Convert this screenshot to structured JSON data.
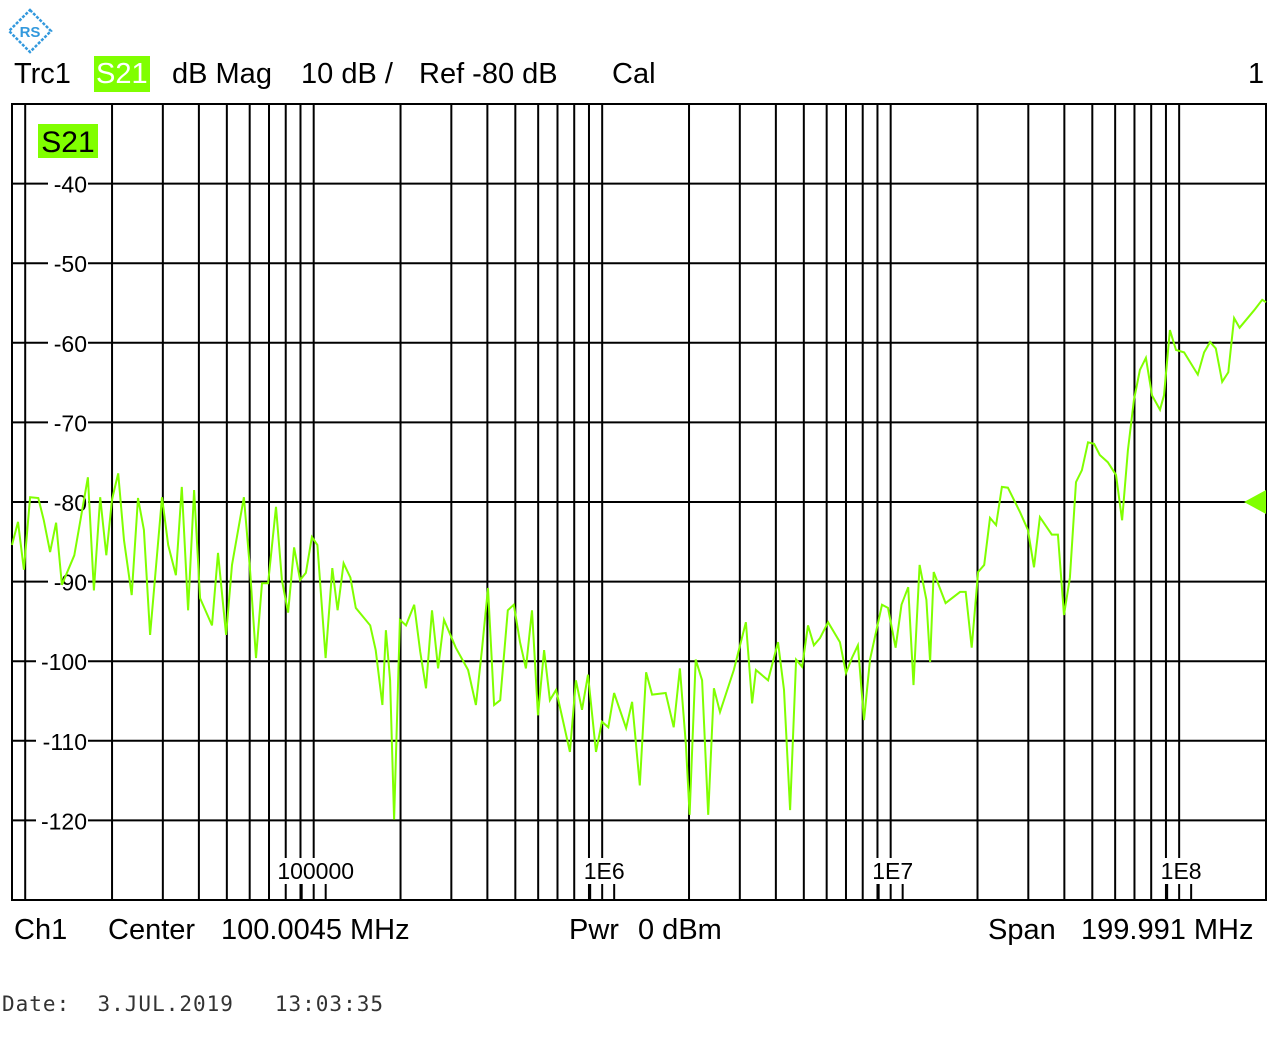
{
  "header": {
    "trace": "Trc1",
    "param": "S21",
    "format": "dB Mag",
    "scale": "10 dB /",
    "ref": "Ref -80 dB",
    "cal": "Cal",
    "channel_no": "1"
  },
  "footer": {
    "channel": "Ch1",
    "center_label": "Center",
    "center_value": "100.0045 MHz",
    "pwr_label": "Pwr",
    "pwr_value": "0 dBm",
    "span_label": "Span",
    "span_value": "199.991 MHz"
  },
  "date_line": "Date:  3.JUL.2019   13:03:35",
  "logo_text": "R&S",
  "colors": {
    "trace": "#80ff00",
    "grid": "#000000",
    "logo": "#3399dd"
  },
  "chart_data": {
    "type": "line",
    "title": "",
    "xlabel": "",
    "ylabel": "",
    "x_scale": "log",
    "xlim": [
      9000,
      200000000
    ],
    "ylim": [
      -130,
      -30
    ],
    "grid": true,
    "trace_label": "S21",
    "ref_level_marker": -80,
    "y_ticks": [
      -40,
      -50,
      -60,
      -70,
      -80,
      -90,
      -100,
      -110,
      -120
    ],
    "y_tick_labels": [
      "-40",
      "-50",
      "-60",
      "-70",
      "-80",
      "-90",
      "-100",
      "-110",
      "-120"
    ],
    "x_ticks": [
      100000,
      1000000,
      10000000,
      100000000
    ],
    "x_tick_labels": [
      "100000",
      "1E6",
      "1E7",
      "1E8"
    ],
    "series": [
      {
        "x": [
          9000,
          9440,
          9900,
          10400,
          11100,
          11600,
          12200,
          12800,
          13400,
          14800,
          16500,
          17300,
          18200,
          19100,
          20000,
          21000,
          22000,
          23400,
          24600,
          25800,
          27100,
          29800,
          31300,
          33300,
          34900,
          36700,
          38500,
          40400,
          44400,
          46600,
          49700,
          52100,
          57300,
          60100,
          63100,
          66200,
          69500,
          74000,
          77600,
          81500,
          85500,
          89700,
          94000,
          98600,
          103000,
          110000,
          116000,
          121000,
          127000,
          134000,
          140000,
          157000,
          164000,
          173000,
          178000,
          184000,
          190000,
          199000,
          209000,
          223000,
          234000,
          245000,
          257000,
          270000,
          283000,
          311000,
          343000,
          365000,
          383000,
          402000,
          422000,
          443000,
          471000,
          494000,
          519000,
          544000,
          571000,
          599000,
          629000,
          659000,
          692000,
          737000,
          773000,
          811000,
          851000,
          893000,
          952000,
          998000,
          1050000,
          1100000,
          1210000,
          1270000,
          1350000,
          1420000,
          1490000,
          1660000,
          1770000,
          1860000,
          1950000,
          2010000,
          2110000,
          2220000,
          2330000,
          2440000,
          2560000,
          2860000,
          3150000,
          3310000,
          3410000,
          3760000,
          4070000,
          4270000,
          4480000,
          4700000,
          4930000,
          5170000,
          5420000,
          5690000,
          6070000,
          6670000,
          7000000,
          7340000,
          7700000,
          8080000,
          8480000,
          9330000,
          9790000,
          10400000,
          10900000,
          11500000,
          12000000,
          12600000,
          13300000,
          13700000,
          14100000,
          15500000,
          17400000,
          18200000,
          19100000,
          20100000,
          21100000,
          22100000,
          23200000,
          24300000,
          25500000,
          28100000,
          29900000,
          31400000,
          32900000,
          36200000,
          38000000,
          39900000,
          41800000,
          43900000,
          46000000,
          48300000,
          50700000,
          53100000,
          56600000,
          60400000,
          63400000,
          66400000,
          69700000,
          73100000,
          76700000,
          80500000,
          85800000,
          88600000,
          92900000,
          97500000,
          104000000,
          116000000,
          122000000,
          128000000,
          134000000,
          141000000,
          148000000,
          155000000,
          162000000,
          182000000,
          194000000,
          200000000
        ],
        "y": [
          -85.4,
          -82.5,
          -88.5,
          -79.4,
          -79.5,
          -82.3,
          -86.3,
          -82.6,
          -90.4,
          -86.7,
          -76.9,
          -91.1,
          -79.4,
          -86.7,
          -79.7,
          -76.4,
          -84.8,
          -91.7,
          -79.5,
          -83.5,
          -96.7,
          -79.4,
          -85.4,
          -89.2,
          -78.1,
          -93.6,
          -78.5,
          -92.1,
          -95.5,
          -86.4,
          -96.7,
          -87.9,
          -79.4,
          -88.3,
          -99.6,
          -90.2,
          -90.2,
          -80.6,
          -89.8,
          -93.9,
          -85.7,
          -89.8,
          -88.9,
          -84.4,
          -85.4,
          -99.6,
          -88.3,
          -93.6,
          -87.7,
          -89.5,
          -93.3,
          -95.5,
          -98.6,
          -105.5,
          -96.1,
          -102.4,
          -119.9,
          -94.8,
          -95.5,
          -92.9,
          -98.8,
          -103.4,
          -93.6,
          -100.9,
          -94.8,
          -98.3,
          -101.1,
          -105.5,
          -98.6,
          -90.8,
          -105.5,
          -104.9,
          -93.6,
          -92.9,
          -97.6,
          -100.9,
          -93.6,
          -106.8,
          -98.6,
          -104.9,
          -103.6,
          -108,
          -111.4,
          -102.4,
          -106.1,
          -101.7,
          -111.4,
          -107.6,
          -108.3,
          -104,
          -108.4,
          -105.1,
          -115.6,
          -101.4,
          -104.2,
          -104,
          -108.3,
          -100.9,
          -110.5,
          -119.3,
          -99.8,
          -102.4,
          -119.3,
          -103.4,
          -106.4,
          -101.1,
          -95.1,
          -105.3,
          -101.1,
          -102.4,
          -97.6,
          -103.6,
          -118.7,
          -99.8,
          -100.7,
          -95.5,
          -98,
          -97.1,
          -95.1,
          -97.6,
          -101.5,
          -99.6,
          -98,
          -107.4,
          -99.8,
          -92.9,
          -93.3,
          -98.3,
          -92.9,
          -90.7,
          -103,
          -87.9,
          -92.3,
          -100.1,
          -88.8,
          -92.7,
          -91.3,
          -91.3,
          -98.3,
          -88.8,
          -87.9,
          -82,
          -82.9,
          -78.1,
          -78.2,
          -81.3,
          -83.5,
          -88.2,
          -81.9,
          -84.1,
          -84.1,
          -94.2,
          -89.5,
          -77.5,
          -76,
          -72.5,
          -72.7,
          -74.1,
          -75,
          -76.6,
          -82.3,
          -73.5,
          -67.2,
          -63.4,
          -61.9,
          -66.6,
          -68.4,
          -66.6,
          -58.4,
          -60.9,
          -61.2,
          -64,
          -61.2,
          -59.9,
          -60.7,
          -64.9,
          -63.7,
          -56.9,
          -58.1,
          -55.9,
          -54.6,
          -54.9
        ]
      }
    ]
  }
}
